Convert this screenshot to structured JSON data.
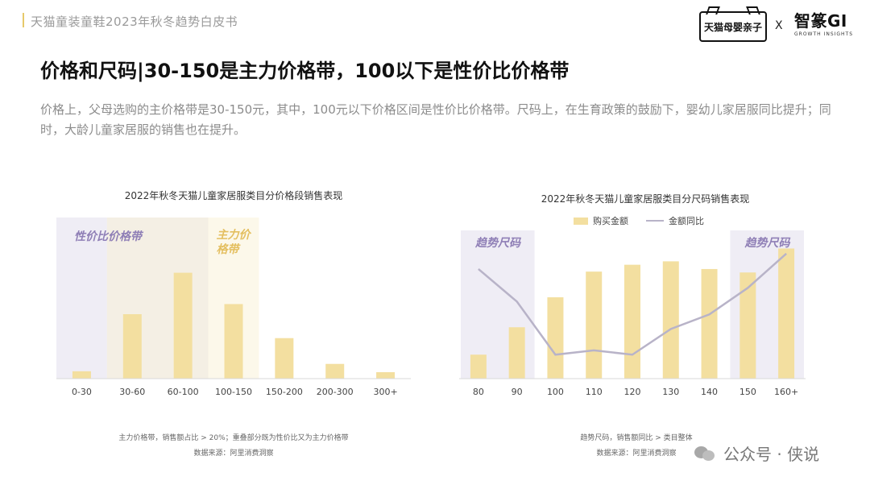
{
  "header": {
    "title": "天猫童装童鞋2023年秋冬趋势白皮书",
    "logo_tmall": "天猫母婴亲子",
    "logo_x": "X",
    "logo_gi": "智篆GI",
    "logo_gi_sub": "GROWTH INSIGHTS"
  },
  "page_title": "价格和尺码|30-150是主力价格带，100以下是性价比价格带",
  "description": "价格上，父母选购的主价格带是30-150元，其中，100元以下价格区间是性价比价格带。尺码上，在生育政策的鼓励下，婴幼儿家居服同比提升；同时，大龄儿童家居服的销售也在提升。",
  "colors": {
    "bar": "#f3dfa0",
    "line": "#b8b3c8",
    "zone_purple": "#efedf5",
    "zone_yellow": "#fcf7e6",
    "label_purple": "#8f7fb6",
    "label_yellow": "#e4bf60"
  },
  "chart_data": [
    {
      "type": "bar",
      "title": "2022年秋冬天猫儿童家居服类目分价格段销售表现",
      "categories": [
        "0-30",
        "30-60",
        "60-100",
        "100-150",
        "150-200",
        "200-300",
        "300+"
      ],
      "values": [
        8,
        70,
        115,
        81,
        44,
        16,
        7
      ],
      "ylim": [
        0,
        175
      ],
      "annotations": [
        {
          "label": "性价比价格带",
          "from_category": "0-30",
          "to_category": "60-100"
        },
        {
          "label": "主力价格带",
          "from_category": "30-60",
          "to_category": "100-150"
        }
      ],
      "footnotes": [
        "主力价格带，销售额占比 > 20%；重叠部分既为性价比又为主力价格带",
        "数据来源：阿里消费洞察"
      ]
    },
    {
      "type": "bar+line",
      "title": "2022年秋冬天猫儿童家居服类目分尺码销售表现",
      "categories": [
        "80",
        "90",
        "100",
        "110",
        "120",
        "130",
        "140",
        "150",
        "160+"
      ],
      "series": [
        {
          "name": "购买金额",
          "type": "bar",
          "values": [
            28,
            60,
            95,
            125,
            133,
            137,
            128,
            124,
            152
          ]
        },
        {
          "name": "金额同比",
          "type": "line",
          "values": [
            128,
            90,
            28,
            33,
            28,
            58,
            75,
            106,
            146
          ]
        }
      ],
      "ylim": [
        0,
        175
      ],
      "annotations": [
        {
          "label": "趋势尺码",
          "from_category": "80",
          "to_category": "90"
        },
        {
          "label": "趋势尺码",
          "from_category": "150",
          "to_category": "160+"
        }
      ],
      "footnotes": [
        "趋势尺码，销售额同比 > 类目整体",
        "数据来源：阿里消费洞察"
      ]
    }
  ],
  "watermark": "公众号 · 侠说"
}
